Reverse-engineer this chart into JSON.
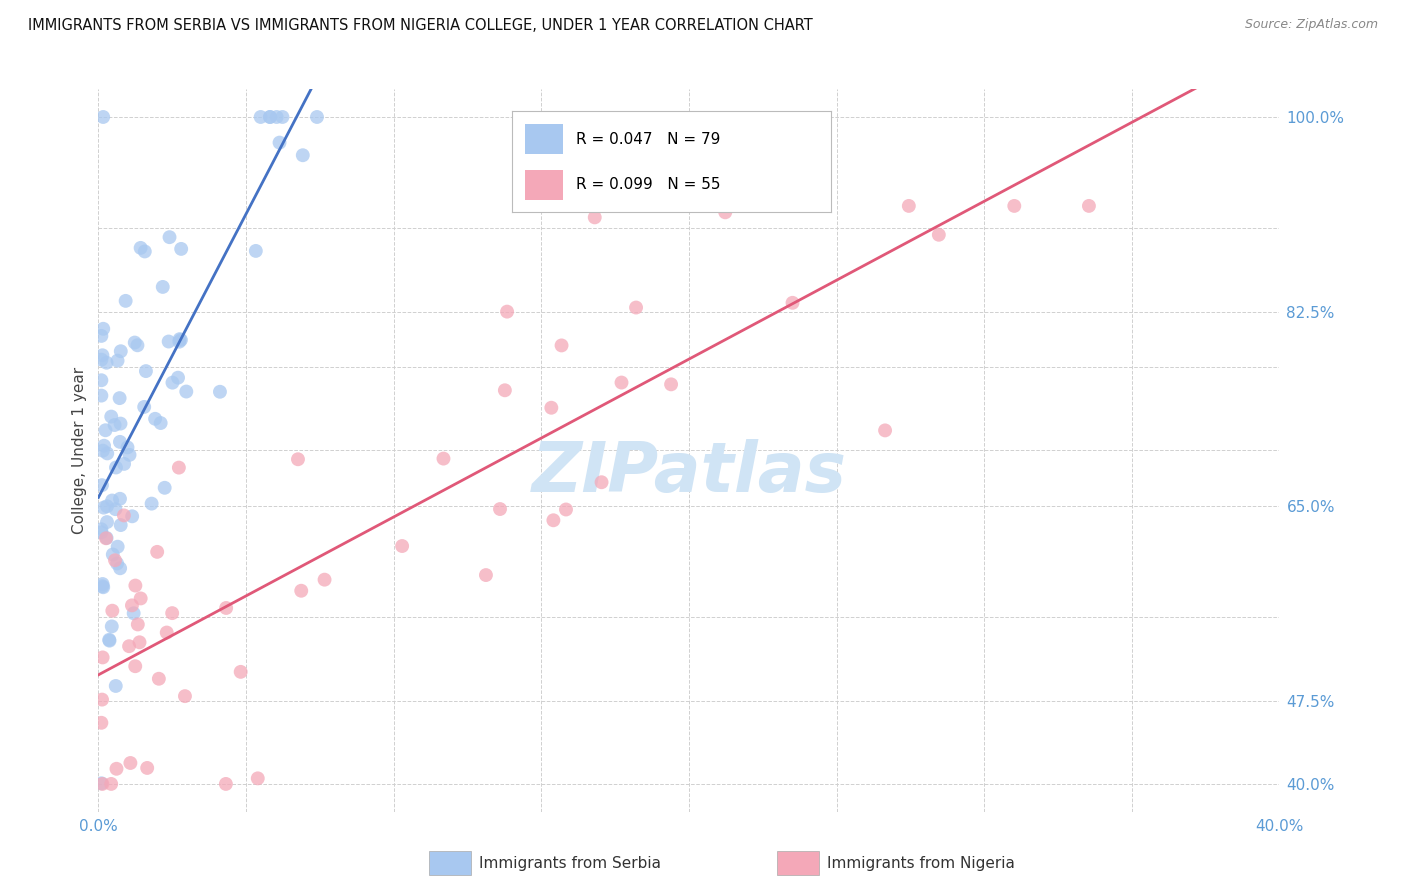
{
  "title": "IMMIGRANTS FROM SERBIA VS IMMIGRANTS FROM NIGERIA COLLEGE, UNDER 1 YEAR CORRELATION CHART",
  "source": "Source: ZipAtlas.com",
  "ylabel": "College, Under 1 year",
  "xlim": [
    0.0,
    0.4
  ],
  "ylim": [
    0.375,
    1.025
  ],
  "serbia_R": 0.047,
  "serbia_N": 79,
  "nigeria_R": 0.099,
  "nigeria_N": 55,
  "serbia_color": "#a8c8f0",
  "nigeria_color": "#f4a8b8",
  "serbia_line_color": "#4472c4",
  "serbia_dash_color": "#8ab0dc",
  "nigeria_line_color": "#e05878",
  "background_color": "#ffffff",
  "grid_color": "#d0d0d0",
  "watermark_color": "#d0e4f5",
  "title_fontsize": 10.5,
  "axis_label_color": "#5b9bd5",
  "right_ytick_labels": [
    "40.0%",
    "47.5%",
    "65.0%",
    "82.5%",
    "100.0%"
  ],
  "right_ytick_values": [
    0.4,
    0.475,
    0.65,
    0.825,
    1.0
  ],
  "serbia_seed": 42,
  "nigeria_seed": 7
}
